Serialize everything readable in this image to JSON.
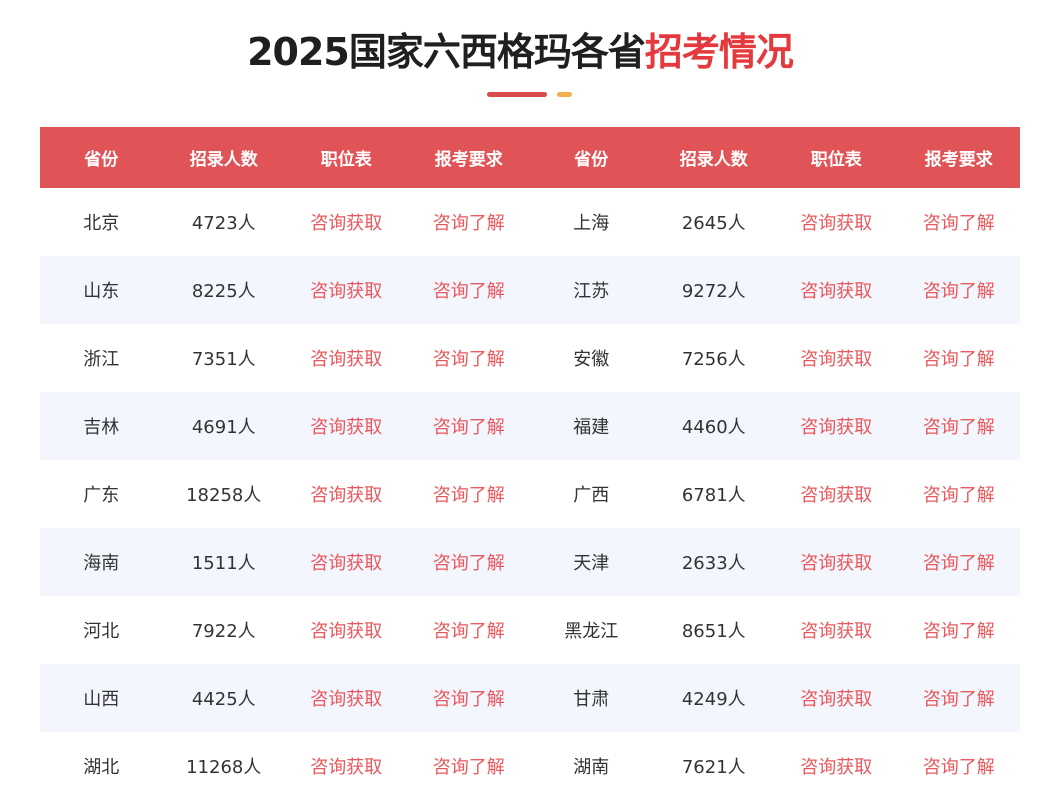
{
  "title": {
    "main": "2025国家六西格玛各省",
    "highlight": "招考情况"
  },
  "colors": {
    "header_bg": "#e05457",
    "link": "#e8585d",
    "title_highlight": "#e53a3d",
    "accent_bar": "#d94a4c",
    "accent_dot": "#f3b04a",
    "alt_row": "#f3f6fd"
  },
  "table": {
    "headers": [
      "省份",
      "招录人数",
      "职位表",
      "报考要求",
      "省份",
      "招录人数",
      "职位表",
      "报考要求"
    ],
    "rows": [
      [
        {
          "province": "北京",
          "count": "4723人",
          "positions": "咨询获取",
          "requirements": "咨询了解"
        },
        {
          "province": "上海",
          "count": "2645人",
          "positions": "咨询获取",
          "requirements": "咨询了解"
        }
      ],
      [
        {
          "province": "山东",
          "count": "8225人",
          "positions": "咨询获取",
          "requirements": "咨询了解"
        },
        {
          "province": "江苏",
          "count": "9272人",
          "positions": "咨询获取",
          "requirements": "咨询了解"
        }
      ],
      [
        {
          "province": "浙江",
          "count": "7351人",
          "positions": "咨询获取",
          "requirements": "咨询了解"
        },
        {
          "province": "安徽",
          "count": "7256人",
          "positions": "咨询获取",
          "requirements": "咨询了解"
        }
      ],
      [
        {
          "province": "吉林",
          "count": "4691人",
          "positions": "咨询获取",
          "requirements": "咨询了解"
        },
        {
          "province": "福建",
          "count": "4460人",
          "positions": "咨询获取",
          "requirements": "咨询了解"
        }
      ],
      [
        {
          "province": "广东",
          "count": "18258人",
          "positions": "咨询获取",
          "requirements": "咨询了解"
        },
        {
          "province": "广西",
          "count": "6781人",
          "positions": "咨询获取",
          "requirements": "咨询了解"
        }
      ],
      [
        {
          "province": "海南",
          "count": "1511人",
          "positions": "咨询获取",
          "requirements": "咨询了解"
        },
        {
          "province": "天津",
          "count": "2633人",
          "positions": "咨询获取",
          "requirements": "咨询了解"
        }
      ],
      [
        {
          "province": "河北",
          "count": "7922人",
          "positions": "咨询获取",
          "requirements": "咨询了解"
        },
        {
          "province": "黑龙江",
          "count": "8651人",
          "positions": "咨询获取",
          "requirements": "咨询了解"
        }
      ],
      [
        {
          "province": "山西",
          "count": "4425人",
          "positions": "咨询获取",
          "requirements": "咨询了解"
        },
        {
          "province": "甘肃",
          "count": "4249人",
          "positions": "咨询获取",
          "requirements": "咨询了解"
        }
      ],
      [
        {
          "province": "湖北",
          "count": "11268人",
          "positions": "咨询获取",
          "requirements": "咨询了解"
        },
        {
          "province": "湖南",
          "count": "7621人",
          "positions": "咨询获取",
          "requirements": "咨询了解"
        }
      ]
    ]
  }
}
